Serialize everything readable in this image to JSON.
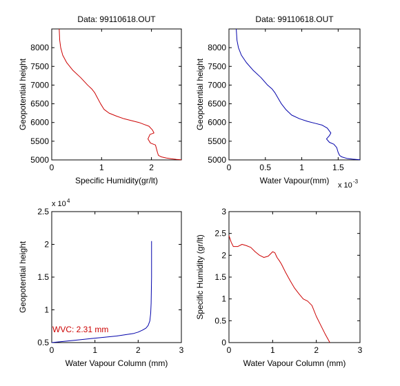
{
  "chart_data": [
    {
      "type": "line",
      "title": "Data: 99110618.OUT",
      "xlabel": "Specific Humidity(gr/lt)",
      "ylabel": "Geopotential height",
      "xlim": [
        0,
        2.6
      ],
      "ylim": [
        5000,
        8500
      ],
      "xticks": [
        "0",
        "1",
        "2"
      ],
      "yticks": [
        "5000",
        "5500",
        "6000",
        "6500",
        "7000",
        "7500",
        "8000"
      ],
      "grid": false,
      "series": [
        {
          "color": "#cc0000",
          "x": [
            0.15,
            0.16,
            0.18,
            0.22,
            0.3,
            0.42,
            0.58,
            0.72,
            0.8,
            0.86,
            0.9,
            0.98,
            1.05,
            1.15,
            1.3,
            1.45,
            1.6,
            1.75,
            1.85,
            1.95,
            2.02,
            2.05,
            1.97,
            1.93,
            1.98,
            2.08,
            2.1,
            2.12,
            2.14,
            2.2,
            2.3,
            2.4,
            2.5,
            2.6
          ],
          "y": [
            8500,
            8200,
            8000,
            7800,
            7600,
            7400,
            7200,
            7000,
            6900,
            6800,
            6700,
            6500,
            6350,
            6250,
            6170,
            6100,
            6050,
            6000,
            5950,
            5900,
            5800,
            5720,
            5680,
            5560,
            5450,
            5400,
            5300,
            5200,
            5120,
            5080,
            5050,
            5030,
            5015,
            5005
          ]
        }
      ]
    },
    {
      "type": "line",
      "title": "Data: 99110618.OUT",
      "xlabel": "Water Vapour(mm)",
      "xscale_label": "x 10",
      "xscale_exp": "-3",
      "ylabel": "Geopotential height",
      "xlim": [
        0,
        1.8
      ],
      "ylim": [
        5000,
        8500
      ],
      "xticks": [
        "0",
        "0.5",
        "1",
        "1.5"
      ],
      "yticks": [
        "5000",
        "5500",
        "6000",
        "6500",
        "7000",
        "7500",
        "8000"
      ],
      "grid": false,
      "series": [
        {
          "color": "#0000aa",
          "x": [
            0.1,
            0.11,
            0.13,
            0.17,
            0.24,
            0.33,
            0.44,
            0.53,
            0.59,
            0.63,
            0.66,
            0.72,
            0.78,
            0.86,
            0.97,
            1.08,
            1.18,
            1.28,
            1.35,
            1.4,
            1.38,
            1.34,
            1.38,
            1.44,
            1.48,
            1.5,
            1.52,
            1.55,
            1.62,
            1.7,
            1.8
          ],
          "y": [
            8500,
            8200,
            8000,
            7800,
            7600,
            7400,
            7200,
            7000,
            6900,
            6800,
            6700,
            6500,
            6350,
            6200,
            6100,
            6030,
            5980,
            5930,
            5850,
            5720,
            5650,
            5560,
            5470,
            5420,
            5330,
            5200,
            5120,
            5080,
            5040,
            5020,
            5005
          ]
        }
      ]
    },
    {
      "type": "line",
      "title": "",
      "xlabel": "Water Vapour Column (mm)",
      "ylabel": "Geopotential height",
      "yscale_label": "x 10",
      "yscale_exp": "4",
      "xlim": [
        0,
        3
      ],
      "ylim": [
        0.5,
        2.5
      ],
      "xticks": [
        "0",
        "1",
        "2",
        "3"
      ],
      "yticks": [
        "0.5",
        "1",
        "1.5",
        "2",
        "2.5"
      ],
      "annotation": "WVC: 2.31 mm",
      "annotation_color": "#cc0000",
      "grid": false,
      "series": [
        {
          "color": "#0000aa",
          "x": [
            0.0,
            0.3,
            0.6,
            0.9,
            1.2,
            1.5,
            1.7,
            1.9,
            2.0,
            2.1,
            2.18,
            2.23,
            2.27,
            2.29,
            2.3,
            2.31,
            2.31
          ],
          "y": [
            0.5,
            0.52,
            0.54,
            0.56,
            0.58,
            0.6,
            0.62,
            0.64,
            0.66,
            0.69,
            0.72,
            0.76,
            0.83,
            0.95,
            1.1,
            1.5,
            2.05
          ]
        }
      ]
    },
    {
      "type": "line",
      "title": "",
      "xlabel": "Water Vapour Column (mm)",
      "ylabel": "Specific Humidity (gr/lt)",
      "xlim": [
        0,
        3
      ],
      "ylim": [
        0,
        3
      ],
      "xticks": [
        "0",
        "1",
        "2",
        "3"
      ],
      "yticks": [
        "0",
        "0.5",
        "1",
        "1.5",
        "2",
        "2.5",
        "3"
      ],
      "grid": false,
      "series": [
        {
          "color": "#cc0000",
          "x": [
            0.0,
            0.05,
            0.1,
            0.2,
            0.3,
            0.4,
            0.5,
            0.6,
            0.7,
            0.8,
            0.9,
            1.0,
            1.05,
            1.1,
            1.15,
            1.2,
            1.3,
            1.4,
            1.5,
            1.6,
            1.7,
            1.8,
            1.9,
            2.0,
            2.1,
            2.2,
            2.31
          ],
          "y": [
            2.45,
            2.3,
            2.2,
            2.2,
            2.25,
            2.22,
            2.18,
            2.08,
            2.0,
            1.95,
            1.98,
            2.08,
            2.06,
            1.95,
            1.88,
            1.8,
            1.6,
            1.42,
            1.25,
            1.12,
            1.0,
            0.95,
            0.85,
            0.6,
            0.4,
            0.2,
            0.0
          ]
        }
      ]
    }
  ]
}
